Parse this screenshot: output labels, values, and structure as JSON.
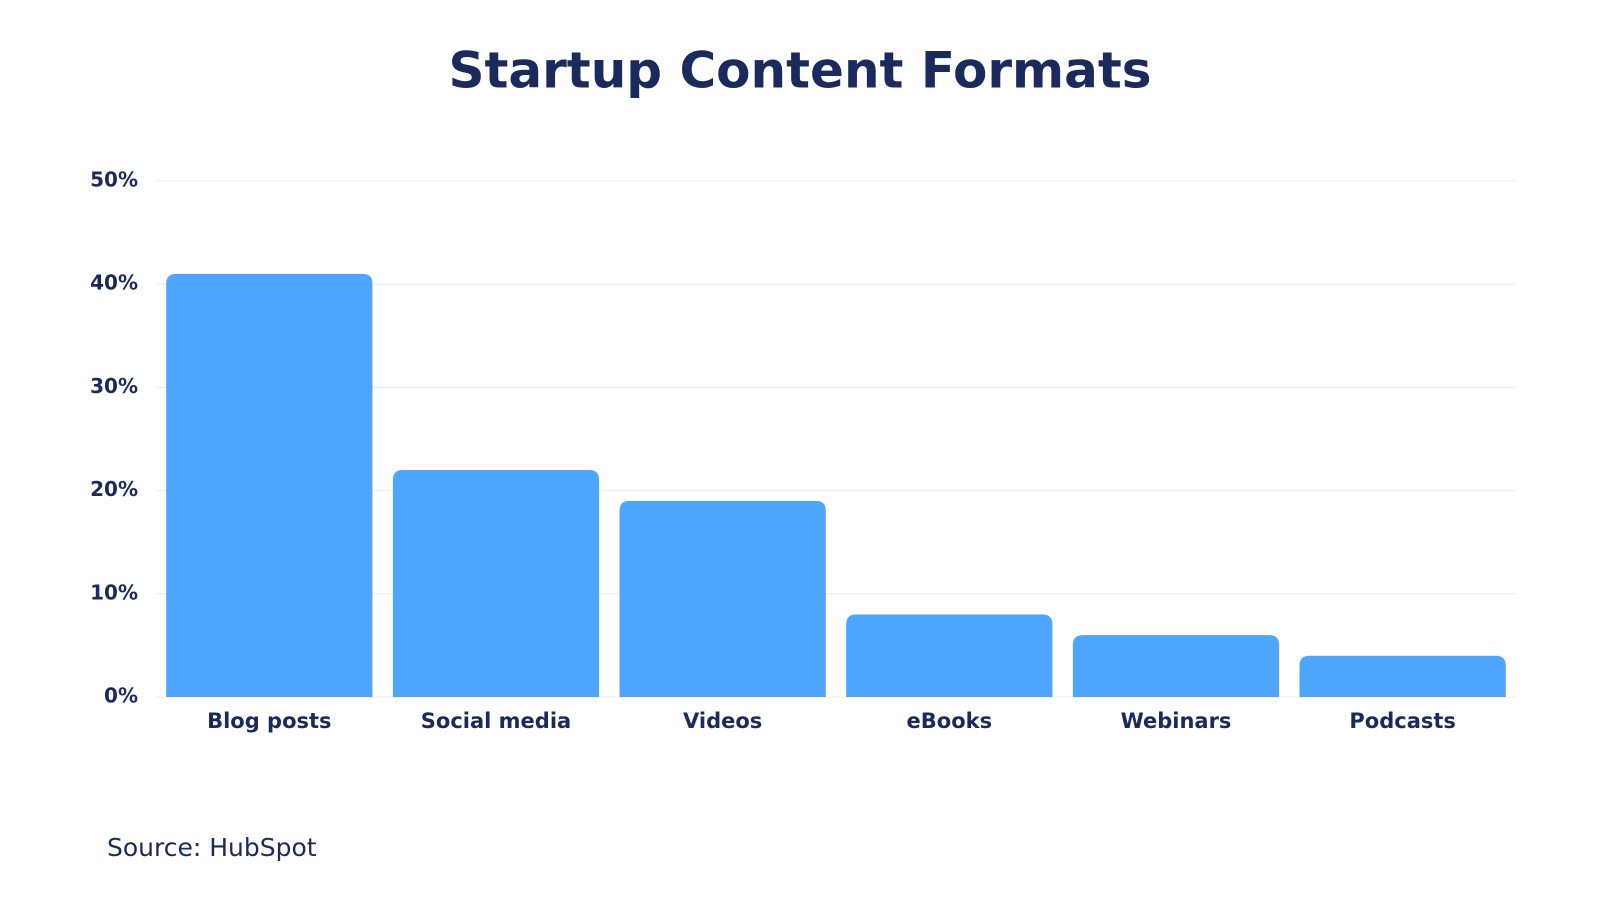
{
  "chart_data": {
    "type": "bar",
    "title": "Startup Content Formats",
    "source": "Source: HubSpot",
    "categories": [
      "Blog posts",
      "Social media",
      "Videos",
      "eBooks",
      "Webinars",
      "Podcasts"
    ],
    "values": [
      41,
      22,
      19,
      8,
      6,
      4
    ],
    "color": "#4da6fb",
    "ylim": [
      0,
      50
    ],
    "yticks": [
      {
        "value": 0,
        "label": "0%"
      },
      {
        "value": 10,
        "label": "10%"
      },
      {
        "value": 20,
        "label": "20%"
      },
      {
        "value": 30,
        "label": "30%"
      },
      {
        "value": 40,
        "label": "40%"
      },
      {
        "value": 50,
        "label": "50%"
      }
    ],
    "grid": true
  }
}
